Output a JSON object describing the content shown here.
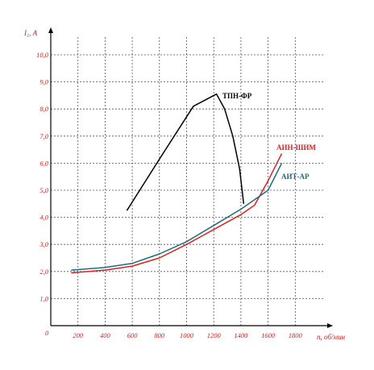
{
  "chart_data": {
    "type": "line",
    "xlabel": "n, об/мин",
    "ylabel": "I₁, А",
    "origin_label": "0",
    "xlim": [
      0,
      2000
    ],
    "ylim": [
      0,
      11
    ],
    "x_ticks": [
      200,
      400,
      600,
      800,
      1000,
      1200,
      1400,
      1600,
      1800
    ],
    "x_tick_labels": [
      "200",
      "400",
      "600",
      "800",
      "1000",
      "1200",
      "1400",
      "1600",
      "1800"
    ],
    "y_ticks": [
      1,
      2,
      3,
      4,
      5,
      6,
      7,
      8,
      9,
      10
    ],
    "y_tick_labels": [
      "1,0",
      "2,0",
      "3,0",
      "4,0",
      "5,0",
      "6,0",
      "7,0",
      "8,0",
      "9,0",
      "10,0"
    ],
    "grid": true,
    "series": [
      {
        "name": "ТПН-ФР",
        "color": "#000000",
        "points": [
          [
            560,
            4.25
          ],
          [
            800,
            6.15
          ],
          [
            1050,
            8.1
          ],
          [
            1220,
            8.55
          ],
          [
            1280,
            8.0
          ],
          [
            1340,
            7.0
          ],
          [
            1390,
            5.8
          ],
          [
            1420,
            4.5
          ]
        ]
      },
      {
        "name": "АИН-ШИМ",
        "color": "#e02020",
        "points": [
          [
            150,
            1.95
          ],
          [
            400,
            2.05
          ],
          [
            600,
            2.2
          ],
          [
            800,
            2.5
          ],
          [
            1000,
            3.0
          ],
          [
            1200,
            3.55
          ],
          [
            1400,
            4.1
          ],
          [
            1500,
            4.45
          ],
          [
            1600,
            5.35
          ],
          [
            1700,
            6.35
          ]
        ]
      },
      {
        "name": "АИТ-АР",
        "color": "#1a6e80",
        "points": [
          [
            150,
            2.05
          ],
          [
            400,
            2.15
          ],
          [
            600,
            2.3
          ],
          [
            800,
            2.65
          ],
          [
            1000,
            3.1
          ],
          [
            1200,
            3.7
          ],
          [
            1400,
            4.3
          ],
          [
            1600,
            5.0
          ],
          [
            1700,
            6.0
          ]
        ]
      }
    ]
  }
}
